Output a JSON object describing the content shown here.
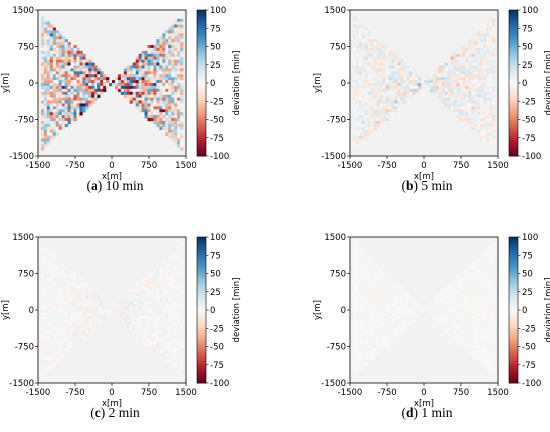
{
  "chart_data": [
    {
      "type": "heatmap",
      "panel_letter": "a",
      "panel_text": "10 min",
      "xlabel": "x[m]",
      "ylabel": "y[m]",
      "xlim": [
        -1500,
        1500
      ],
      "ylim": [
        -1500,
        1500
      ],
      "x_ticks": [
        -1500,
        -750,
        0,
        750,
        1500
      ],
      "y_ticks": [
        1500,
        750,
        0,
        -750,
        -1500
      ],
      "colorbar_label": "deviation [min]",
      "colorbar_ticks": [
        100,
        75,
        50,
        25,
        0,
        -25,
        -50,
        -75,
        -100
      ],
      "clim": [
        -100,
        100
      ],
      "background_value": 0,
      "region": "bowtie (|x| ≥ |y| approx.)",
      "deviation_amplitude": 100
    },
    {
      "type": "heatmap",
      "panel_letter": "b",
      "panel_text": "5 min",
      "xlabel": "x[m]",
      "ylabel": "y[m]",
      "xlim": [
        -1500,
        1500
      ],
      "ylim": [
        -1500,
        1500
      ],
      "x_ticks": [
        -1500,
        -750,
        0,
        750,
        1500
      ],
      "y_ticks": [
        1500,
        750,
        0,
        -750,
        -1500
      ],
      "colorbar_label": "deviation [min]",
      "colorbar_ticks": [
        100,
        75,
        50,
        25,
        0,
        -25,
        -50,
        -75,
        -100
      ],
      "clim": [
        -100,
        100
      ],
      "background_value": 0,
      "region": "bowtie (|x| ≥ |y| approx.)",
      "deviation_amplitude": 30
    },
    {
      "type": "heatmap",
      "panel_letter": "c",
      "panel_text": "2 min",
      "xlabel": "x[m]",
      "ylabel": "y[m]",
      "xlim": [
        -1500,
        1500
      ],
      "ylim": [
        -1500,
        1500
      ],
      "x_ticks": [
        -1500,
        -750,
        0,
        750,
        1500
      ],
      "y_ticks": [
        1500,
        750,
        0,
        -750,
        -1500
      ],
      "colorbar_label": "deviation [min]",
      "colorbar_ticks": [
        100,
        75,
        50,
        25,
        0,
        -25,
        -50,
        -75,
        -100
      ],
      "clim": [
        -100,
        100
      ],
      "background_value": 0,
      "region": "bowtie (|x| ≥ |y| approx.)",
      "deviation_amplitude": 10
    },
    {
      "type": "heatmap",
      "panel_letter": "d",
      "panel_text": "1 min",
      "xlabel": "x[m]",
      "ylabel": "y[m]",
      "xlim": [
        -1500,
        1500
      ],
      "ylim": [
        -1500,
        1500
      ],
      "x_ticks": [
        -1500,
        -750,
        0,
        750,
        1500
      ],
      "y_ticks": [
        1500,
        750,
        0,
        -750,
        -1500
      ],
      "colorbar_label": "deviation [min]",
      "colorbar_ticks": [
        100,
        75,
        50,
        25,
        0,
        -25,
        -50,
        -75,
        -100
      ],
      "clim": [
        -100,
        100
      ],
      "background_value": 0,
      "region": "bowtie (|x| ≥ |y| approx.)",
      "deviation_amplitude": 5
    }
  ],
  "colormap": {
    "name": "diverging red-white-blue",
    "stops": [
      "#67001f",
      "#b2182b",
      "#d6604d",
      "#f4a582",
      "#fddbc7",
      "#f7f7f7",
      "#d1e5f0",
      "#92c5de",
      "#4393c3",
      "#2166ac",
      "#053061"
    ]
  },
  "background_color": "#f2f2f2"
}
